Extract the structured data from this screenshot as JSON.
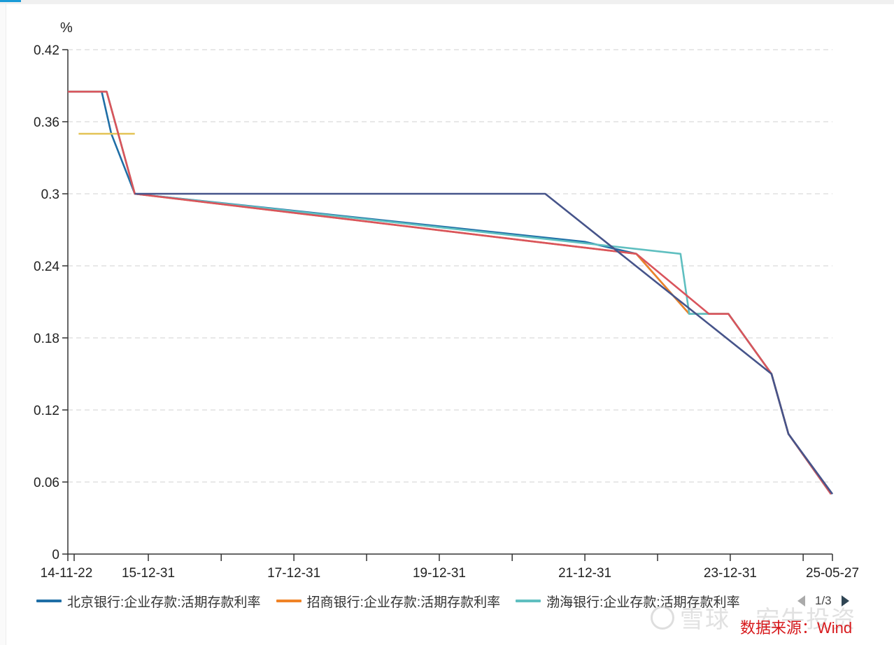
{
  "chart_data": {
    "type": "line",
    "ylabel": "%",
    "ylim": [
      0,
      0.42
    ],
    "yticks": [
      "0",
      "0.06",
      "0.12",
      "0.18",
      "0.24",
      "0.3",
      "0.36",
      "0.42"
    ],
    "xlim": [
      "2014-11-22",
      "2025-05-27"
    ],
    "xticks": [
      "14-11-22",
      "15-12-31",
      "17-12-31",
      "19-12-31",
      "21-12-31",
      "23-12-31",
      "25-05-27"
    ],
    "grid": true,
    "series": [
      {
        "name": "北京银行:企业存款:活期存款利率",
        "color": "#1f6ea6",
        "points": [
          [
            "2014-11-22",
            0.385
          ],
          [
            "2015-05-11",
            0.385
          ],
          [
            "2015-06-28",
            0.35
          ],
          [
            "2015-10-24",
            0.3
          ],
          [
            "2021-12-31",
            0.26
          ],
          [
            "2022-09-15",
            0.25
          ],
          [
            "2023-06-08",
            0.2
          ],
          [
            "2023-12-22",
            0.2
          ],
          [
            "2024-07-25",
            0.15
          ],
          [
            "2024-10-18",
            0.1
          ],
          [
            "2025-05-20",
            0.05
          ]
        ]
      },
      {
        "name": "招商银行:企业存款:活期存款利率",
        "color": "#f08326",
        "points": [
          [
            "2014-11-22",
            0.385
          ],
          [
            "2015-06-05",
            0.385
          ],
          [
            "2015-10-24",
            0.3
          ],
          [
            "2022-09-15",
            0.25
          ],
          [
            "2023-06-08",
            0.2
          ],
          [
            "2023-12-22",
            0.2
          ],
          [
            "2024-07-25",
            0.15
          ],
          [
            "2024-10-18",
            0.1
          ],
          [
            "2025-05-20",
            0.05
          ]
        ]
      },
      {
        "name": "渤海银行:企业存款:活期存款利率",
        "color": "#5fbfc0",
        "points": [
          [
            "2014-11-22",
            0.385
          ],
          [
            "2015-06-05",
            0.385
          ],
          [
            "2015-10-24",
            0.3
          ],
          [
            "2023-04-25",
            0.25
          ],
          [
            "2023-06-08",
            0.2
          ],
          [
            "2023-12-22",
            0.2
          ],
          [
            "2024-07-25",
            0.15
          ],
          [
            "2024-10-18",
            0.1
          ],
          [
            "2025-05-20",
            0.05
          ]
        ]
      },
      {
        "color": "#e5c65c",
        "points": [
          [
            "2015-01-15",
            0.35
          ],
          [
            "2015-10-24",
            0.35
          ]
        ]
      },
      {
        "color": "#d9545c",
        "points": [
          [
            "2014-11-22",
            0.385
          ],
          [
            "2015-06-05",
            0.385
          ],
          [
            "2015-10-24",
            0.3
          ],
          [
            "2022-09-15",
            0.25
          ],
          [
            "2023-09-15",
            0.2
          ],
          [
            "2023-12-22",
            0.2
          ],
          [
            "2024-07-25",
            0.15
          ],
          [
            "2024-10-18",
            0.1
          ],
          [
            "2025-05-20",
            0.05
          ]
        ]
      },
      {
        "color": "#46548a",
        "points": [
          [
            "2015-10-24",
            0.3
          ],
          [
            "2021-06-15",
            0.3
          ],
          [
            "2024-07-25",
            0.15
          ],
          [
            "2024-10-18",
            0.1
          ],
          [
            "2025-05-27",
            0.05
          ]
        ]
      }
    ]
  },
  "legend": {
    "items": [
      {
        "label": "北京银行:企业存款:活期存款利率",
        "color": "#1f6ea6"
      },
      {
        "label": "招商银行:企业存款:活期存款利率",
        "color": "#f08326"
      },
      {
        "label": "渤海银行:企业存款:活期存款利率",
        "color": "#5fbfc0"
      }
    ],
    "page": "1/3"
  },
  "watermark": "雪球 · 宏牛投资",
  "source": "数据来源：Wind"
}
